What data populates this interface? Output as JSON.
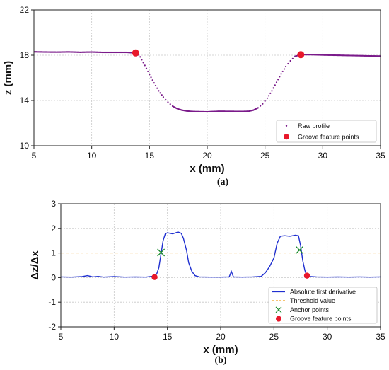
{
  "chart_data": [
    {
      "type": "scatter",
      "caption": "(a)",
      "xlabel": "x (mm)",
      "ylabel": "z (mm)",
      "xlim": [
        5,
        35
      ],
      "ylim": [
        10,
        22
      ],
      "xticks": [
        5,
        10,
        15,
        20,
        25,
        30,
        35
      ],
      "yticks": [
        10,
        14,
        18,
        22
      ],
      "grid": true,
      "legend_position": "bottom-right",
      "series": [
        {
          "name": "Raw profile",
          "color": "#7a1a8a",
          "marker": "dot",
          "x": [
            5,
            6,
            7,
            8,
            9,
            10,
            11,
            12,
            13,
            13.8,
            14.2,
            14.6,
            15.0,
            15.4,
            15.8,
            16.2,
            16.6,
            17.0,
            17.4,
            17.8,
            18.2,
            18.6,
            19,
            20,
            21,
            22,
            23,
            23.6,
            24.0,
            24.4,
            24.8,
            25.2,
            25.6,
            26.0,
            26.4,
            26.8,
            27.2,
            27.6,
            28.1,
            29,
            30,
            31,
            32,
            33,
            34,
            35
          ],
          "y": [
            18.3,
            18.28,
            18.27,
            18.29,
            18.26,
            18.28,
            18.25,
            18.25,
            18.25,
            18.2,
            17.85,
            17.1,
            16.3,
            15.55,
            14.85,
            14.3,
            13.85,
            13.5,
            13.28,
            13.15,
            13.08,
            13.04,
            13.02,
            13.0,
            13.05,
            13.04,
            13.03,
            13.05,
            13.15,
            13.35,
            13.7,
            14.2,
            14.85,
            15.6,
            16.35,
            17.0,
            17.5,
            17.9,
            18.05,
            18.05,
            18.02,
            18.0,
            17.98,
            17.96,
            17.94,
            17.92
          ]
        },
        {
          "name": "Groove feature points",
          "color": "#e8182a",
          "marker": "circle",
          "x": [
            13.8,
            28.1
          ],
          "y": [
            18.2,
            18.05
          ]
        }
      ]
    },
    {
      "type": "line",
      "caption": "(b)",
      "xlabel": "x (mm)",
      "ylabel": "Δz/Δx",
      "xlim": [
        5,
        35
      ],
      "ylim": [
        -2,
        3
      ],
      "xticks": [
        5,
        10,
        15,
        20,
        25,
        30,
        35
      ],
      "yticks": [
        -2,
        -1,
        0,
        1,
        2,
        3
      ],
      "grid": true,
      "legend_position": "bottom-right",
      "series": [
        {
          "name": "Absolute first derivative",
          "color": "#1f2fd0",
          "x": [
            5,
            6,
            7,
            7.5,
            8,
            8.5,
            9,
            10,
            11,
            12,
            13,
            13.5,
            13.8,
            14.0,
            14.2,
            14.4,
            14.6,
            14.8,
            15.0,
            15.5,
            16.0,
            16.3,
            16.5,
            16.8,
            17.0,
            17.3,
            17.6,
            18.0,
            19,
            20,
            20.8,
            21.0,
            21.2,
            22,
            23,
            23.8,
            24.2,
            24.6,
            25.0,
            25.3,
            25.6,
            26.0,
            26.5,
            27.0,
            27.3,
            27.5,
            27.7,
            27.9,
            28.1,
            28.5,
            29,
            30,
            31,
            32,
            33,
            34,
            35
          ],
          "y": [
            0.03,
            0.02,
            0.04,
            0.08,
            0.03,
            0.05,
            0.02,
            0.04,
            0.02,
            0.03,
            0.02,
            0.05,
            0.05,
            0.15,
            0.4,
            0.95,
            1.5,
            1.78,
            1.82,
            1.78,
            1.85,
            1.8,
            1.6,
            1.1,
            0.6,
            0.25,
            0.08,
            0.03,
            0.02,
            0.02,
            0.03,
            0.25,
            0.03,
            0.02,
            0.03,
            0.05,
            0.2,
            0.45,
            0.8,
            1.4,
            1.68,
            1.7,
            1.68,
            1.72,
            1.7,
            1.3,
            0.7,
            0.3,
            0.05,
            0.04,
            0.03,
            0.02,
            0.03,
            0.02,
            0.03,
            0.02,
            0.03
          ]
        },
        {
          "name": "Threshold value",
          "color": "#f0a020",
          "style": "dashed",
          "x": [
            5,
            35
          ],
          "y": [
            1,
            1
          ]
        },
        {
          "name": "Anchor points",
          "color": "#1a8a2a",
          "marker": "x",
          "x": [
            14.4,
            27.4
          ],
          "y": [
            1.02,
            1.12
          ]
        },
        {
          "name": "Groove feature points",
          "color": "#e8182a",
          "marker": "circle",
          "x": [
            13.8,
            28.1
          ],
          "y": [
            0.02,
            0.08
          ]
        }
      ]
    }
  ]
}
